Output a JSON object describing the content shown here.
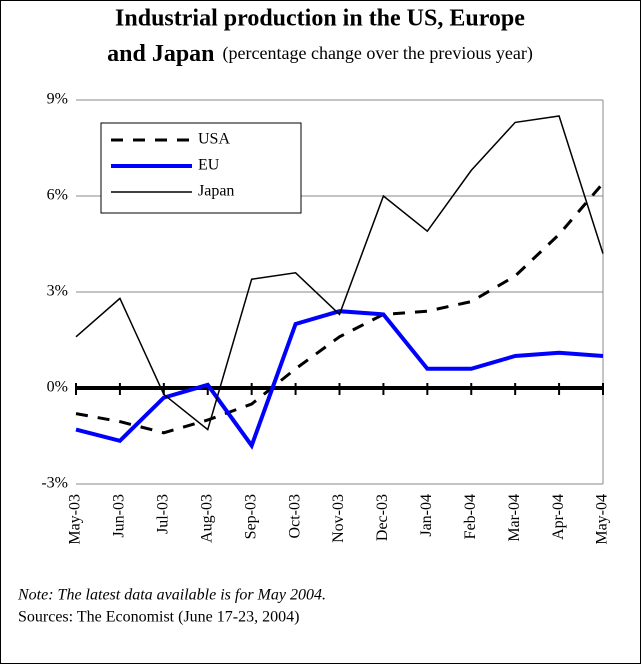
{
  "chart_data": {
    "type": "line",
    "title": [
      "Industrial production in the US, Europe",
      "and Japan"
    ],
    "subtitle": "(percentage change over the previous year)",
    "categories": [
      "May-03",
      "Jun-03",
      "Jul-03",
      "Aug-03",
      "Sep-03",
      "Oct-03",
      "Nov-03",
      "Dec-03",
      "Jan-04",
      "Feb-04",
      "Mar-04",
      "Apr-04",
      "May-04"
    ],
    "series": [
      {
        "name": "USA",
        "color": "#000000",
        "dash": true,
        "values": [
          -0.8,
          -1.05,
          -1.4,
          -1.0,
          -0.5,
          0.6,
          1.6,
          2.3,
          2.4,
          2.7,
          3.5,
          4.8,
          6.4
        ]
      },
      {
        "name": "EU",
        "color": "#0000ff",
        "dash": false,
        "values": [
          -1.3,
          -1.65,
          -0.3,
          0.1,
          -1.8,
          2.0,
          2.4,
          2.3,
          0.6,
          0.6,
          1.0,
          1.1,
          1.0
        ]
      },
      {
        "name": "Japan",
        "color": "#000000",
        "dash": false,
        "values": [
          1.6,
          2.8,
          -0.2,
          -1.3,
          3.4,
          3.6,
          2.3,
          6.0,
          4.9,
          6.8,
          8.3,
          8.5,
          4.2
        ]
      }
    ],
    "ylim": [
      -3,
      9
    ],
    "yticks": [
      {
        "value": -3,
        "label": "-3%"
      },
      {
        "value": 0,
        "label": "0%"
      },
      {
        "value": 3,
        "label": "3%"
      },
      {
        "value": 6,
        "label": "6%"
      },
      {
        "value": 9,
        "label": "9%"
      }
    ],
    "grid": true,
    "notes": [
      "Note: The latest data available is for May 2004.",
      "Sources: The Economist (June 17-23, 2004)"
    ]
  }
}
